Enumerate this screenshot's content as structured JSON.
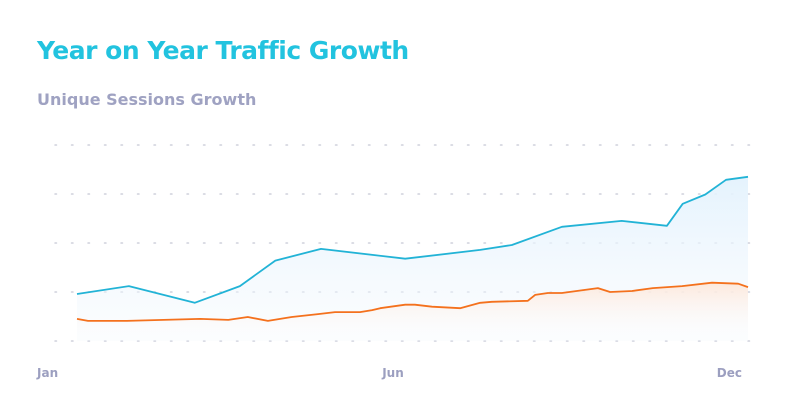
{
  "chart_data": {
    "type": "area",
    "title": "Year on Year Traffic Growth",
    "subtitle": "Unique Sessions Growth",
    "xlabel": "",
    "ylabel": "",
    "x_ticks": [
      {
        "label": "Jan",
        "x": 1,
        "align": "start"
      },
      {
        "label": "Jun",
        "x": 6,
        "align": "middle"
      },
      {
        "label": "Dec",
        "x": 12,
        "align": "end"
      }
    ],
    "xlim": [
      1,
      12
    ],
    "ylim": [
      0,
      4
    ],
    "y_gridlines": [
      0,
      1,
      2,
      3,
      4
    ],
    "y_tick_labels_shown": false,
    "grid": "dotted horizontal",
    "series": [
      {
        "color": "#22b3d6",
        "fill": "#e8f4fd",
        "x": [
          1.0,
          1.85,
          2.93,
          3.67,
          4.25,
          5.0,
          6.38,
          7.61,
          8.13,
          8.95,
          9.93,
          10.67,
          10.93,
          11.3,
          11.64,
          12.0
        ],
        "y": [
          0.96,
          1.12,
          0.78,
          1.12,
          1.64,
          1.88,
          1.68,
          1.86,
          1.96,
          2.33,
          2.45,
          2.35,
          2.8,
          2.99,
          3.29,
          3.35
        ]
      },
      {
        "color": "#f4711d",
        "fill": "#fde8dc",
        "x": [
          1.0,
          1.18,
          1.79,
          3.02,
          3.48,
          3.8,
          4.13,
          4.52,
          4.95,
          5.23,
          5.64,
          5.84,
          5.97,
          6.38,
          6.54,
          6.82,
          7.28,
          7.61,
          7.8,
          8.39,
          8.51,
          8.72,
          8.95,
          9.54,
          9.74,
          10.1,
          10.44,
          10.92,
          11.41,
          11.84,
          12.0
        ],
        "y": [
          0.45,
          0.41,
          0.41,
          0.45,
          0.43,
          0.49,
          0.41,
          0.49,
          0.55,
          0.59,
          0.59,
          0.63,
          0.67,
          0.74,
          0.74,
          0.7,
          0.67,
          0.78,
          0.8,
          0.82,
          0.94,
          0.98,
          0.98,
          1.08,
          1.0,
          1.02,
          1.08,
          1.12,
          1.19,
          1.17,
          1.1
        ]
      }
    ]
  }
}
